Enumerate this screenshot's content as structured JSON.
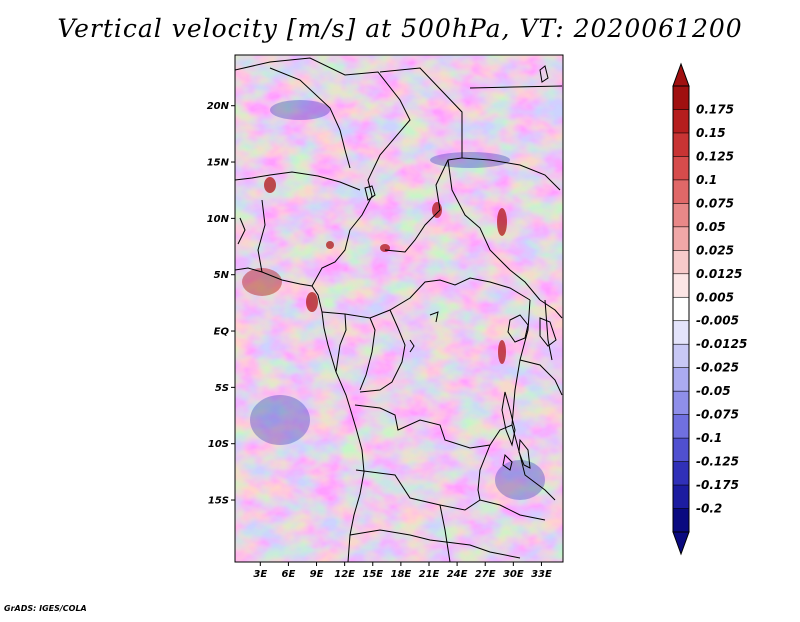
{
  "title": "Vertical velocity [m/s] at 500hPa, VT: 2020061200",
  "map": {
    "lat_labels": [
      "20N",
      "15N",
      "10N",
      "5N",
      "EQ",
      "5S",
      "10S",
      "15S"
    ],
    "lat_values": [
      20,
      15,
      10,
      5,
      0,
      -5,
      -10,
      -15
    ],
    "lon_labels": [
      "3E",
      "6E",
      "9E",
      "12E",
      "15E",
      "18E",
      "21E",
      "24E",
      "27E",
      "30E",
      "33E"
    ],
    "lon_values": [
      3,
      6,
      9,
      12,
      15,
      18,
      21,
      24,
      27,
      30,
      33
    ],
    "lat_range": [
      -20,
      25
    ],
    "lon_range": [
      0,
      35
    ],
    "field": "vertical velocity at 500hPa",
    "valid_time": "2020061200"
  },
  "colorbar": {
    "labels": [
      "0.175",
      "0.15",
      "0.125",
      "0.1",
      "0.075",
      "0.05",
      "0.025",
      "0.0125",
      "0.005",
      "-0.005",
      "-0.0125",
      "-0.025",
      "-0.05",
      "-0.075",
      "-0.1",
      "-0.125",
      "-0.175",
      "-0.2"
    ],
    "colors": [
      "#a01010",
      "#b51e1e",
      "#c83434",
      "#d64c4c",
      "#e06868",
      "#e88888",
      "#f0a8a8",
      "#f7caca",
      "#fce6e6",
      "#ffffff",
      "#e4e4fb",
      "#c8c8f5",
      "#ababf0",
      "#8f8fea",
      "#7070e0",
      "#5050d0",
      "#3030b8",
      "#1c1ca0",
      "#0a0a80"
    ]
  },
  "footer": "GrADS: IGES/COLA"
}
